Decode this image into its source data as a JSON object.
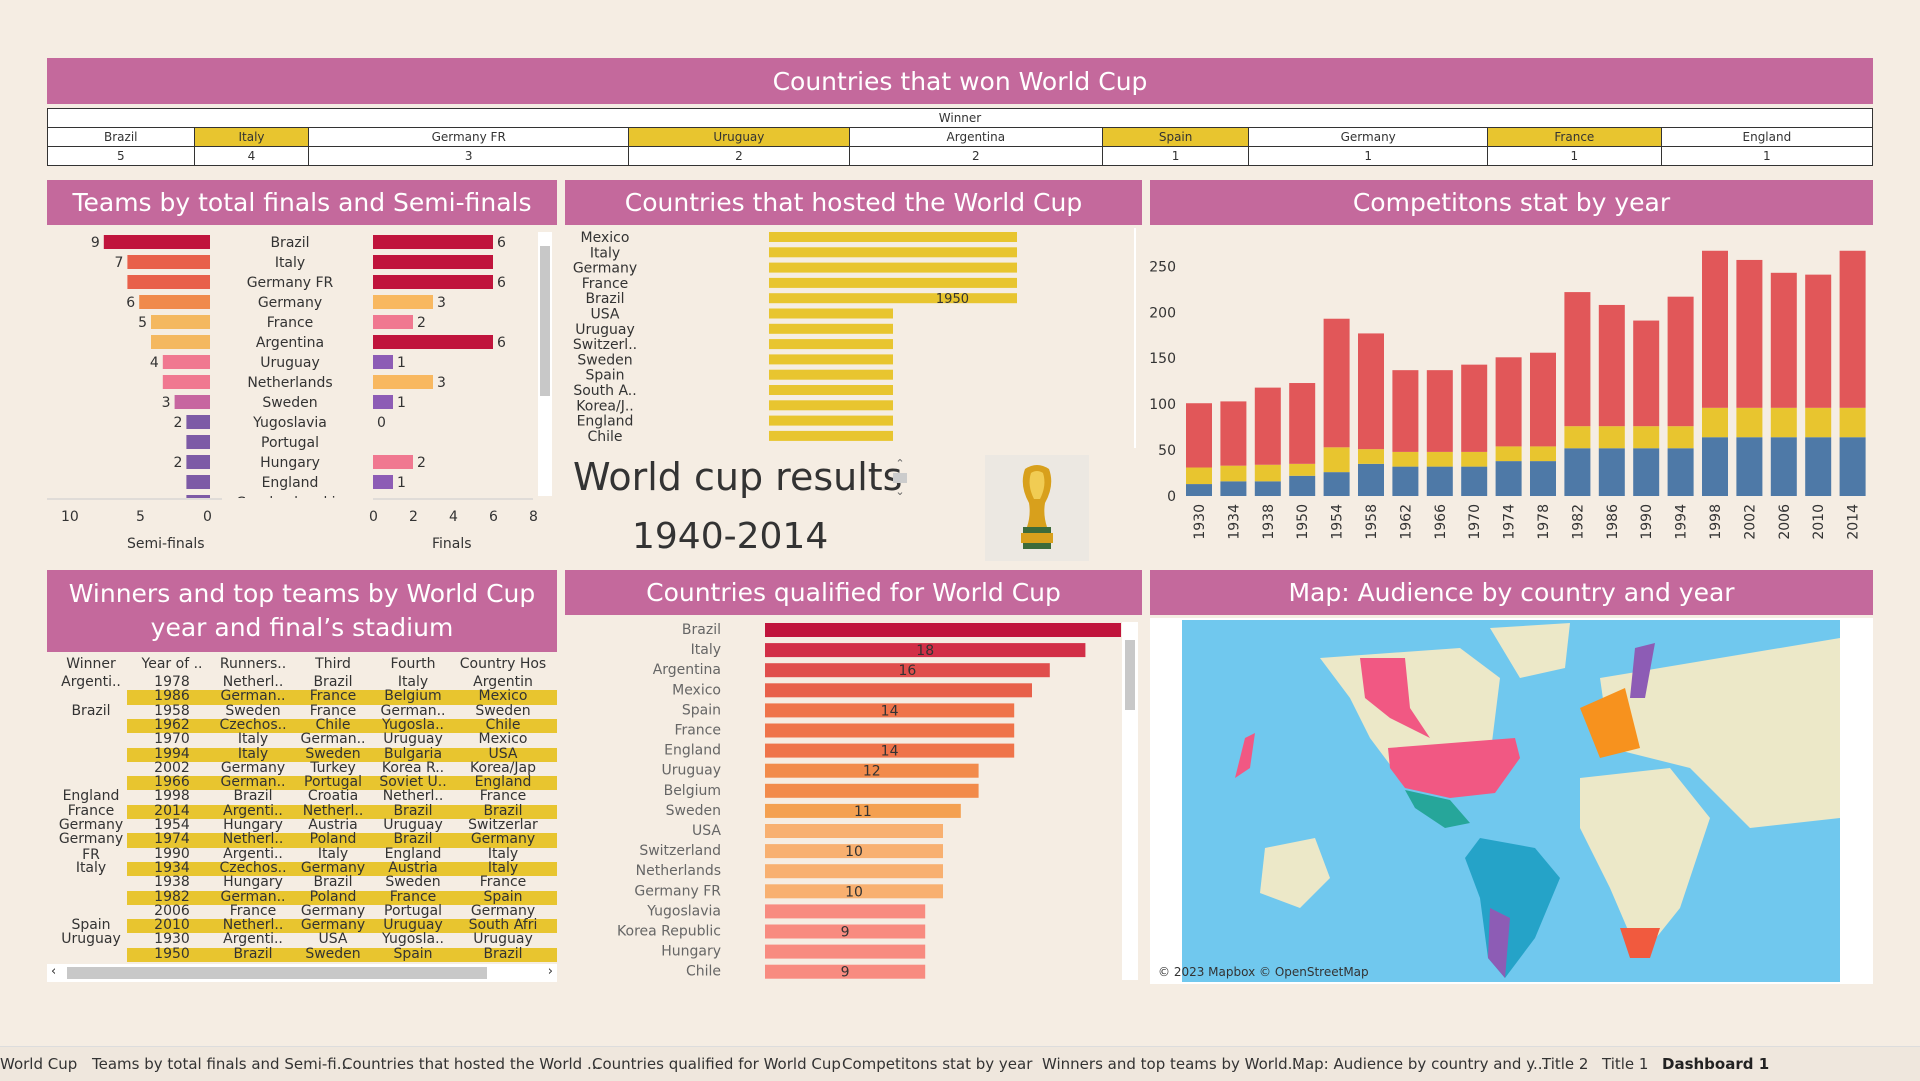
{
  "main_title": "Countries that won World Cup",
  "winners_table": {
    "header": "Winner",
    "countries": [
      "Brazil",
      "Italy",
      "Germany FR",
      "Uruguay",
      "Argentina",
      "Spain",
      "Germany",
      "France",
      "England"
    ],
    "counts": [
      "5",
      "4",
      "3",
      "2",
      "2",
      "1",
      "1",
      "1",
      "1"
    ],
    "highlight": [
      false,
      true,
      false,
      true,
      false,
      true,
      false,
      true,
      false
    ]
  },
  "panels": {
    "finals_title": "Teams by total finals and Semi-finals",
    "hosted_title": "Countries that hosted the World Cup",
    "stats_title": "Competitons stat by year",
    "winners_title": "Winners and top teams by World Cup year and final’s stadium",
    "qualified_title": "Countries qualified for World Cup",
    "map_title": "Map: Audience by country and year"
  },
  "results_text": {
    "line1": "World cup results",
    "line2": "1940-2014"
  },
  "map_credit": "© 2023 Mapbox © OpenStreetMap",
  "chart_data": [
    {
      "type": "bar",
      "name": "finals_and_semifinals",
      "categories": [
        "Brazil",
        "Italy",
        "Germany FR",
        "Germany",
        "France",
        "Argentina",
        "Uruguay",
        "Netherlands",
        "Sweden",
        "Yugoslavia",
        "Portugal",
        "Hungary",
        "England",
        "Czechoslovakia"
      ],
      "semi_finals": [
        9,
        7,
        7,
        6,
        5,
        5,
        4,
        4,
        3,
        2,
        2,
        2,
        2,
        2
      ],
      "semi_labels": [
        "9",
        "7",
        "",
        "6",
        "5",
        "",
        "4",
        "",
        "3",
        "2",
        "",
        "2",
        "",
        ""
      ],
      "finals": [
        6,
        6,
        6,
        3,
        2,
        6,
        1,
        3,
        1,
        0,
        null,
        2,
        1,
        null
      ],
      "finals_labels": [
        "6",
        "",
        "6",
        "3",
        "2",
        "6",
        "1",
        "3",
        "1",
        "0",
        "",
        "2",
        "1",
        ""
      ],
      "semi_axis": {
        "ticks": [
          "10",
          "5",
          "0"
        ],
        "label": "Semi-finals"
      },
      "finals_axis": {
        "ticks": [
          "0",
          "2",
          "4",
          "6",
          "8"
        ],
        "label": "Finals"
      }
    },
    {
      "type": "bar",
      "name": "hosted",
      "categories": [
        "Mexico",
        "Italy",
        "Germany",
        "France",
        "Brazil",
        "USA",
        "Uruguay",
        "Switzerl..",
        "Sweden",
        "Spain",
        "South A..",
        "Korea/J..",
        "England",
        "Chile"
      ],
      "values": [
        2,
        2,
        2,
        2,
        2,
        1,
        1,
        1,
        1,
        1,
        1,
        1,
        1,
        1
      ],
      "annotation": {
        "category": "Brazil",
        "text": "1950"
      }
    },
    {
      "type": "bar",
      "name": "competition_stats",
      "categories": [
        "1930",
        "1934",
        "1938",
        "1950",
        "1954",
        "1958",
        "1962",
        "1966",
        "1970",
        "1974",
        "1978",
        "1982",
        "1986",
        "1990",
        "1994",
        "1998",
        "2002",
        "2006",
        "2010",
        "2014"
      ],
      "stack_bottom": [
        13,
        16,
        16,
        22,
        26,
        35,
        32,
        32,
        32,
        38,
        38,
        52,
        52,
        52,
        52,
        64,
        64,
        64,
        64,
        64
      ],
      "stack_middle": [
        18,
        17,
        18,
        13,
        27,
        16,
        16,
        16,
        16,
        16,
        16,
        24,
        24,
        24,
        24,
        32,
        32,
        32,
        32,
        32
      ],
      "stack_top": [
        70,
        70,
        84,
        88,
        140,
        126,
        89,
        89,
        95,
        97,
        102,
        146,
        132,
        115,
        141,
        171,
        161,
        147,
        145,
        171
      ],
      "y_ticks": [
        "0",
        "50",
        "100",
        "150",
        "200",
        "250"
      ],
      "ylim": [
        0,
        270
      ],
      "colors": {
        "bottom": "#4e79a7",
        "middle": "#e8c52f",
        "top": "#e15759"
      }
    },
    {
      "type": "bar",
      "name": "qualified",
      "categories": [
        "Brazil",
        "Italy",
        "Argentina",
        "Mexico",
        "Spain",
        "France",
        "England",
        "Uruguay",
        "Belgium",
        "Sweden",
        "USA",
        "Switzerland",
        "Netherlands",
        "Germany FR",
        "Yugoslavia",
        "Korea Republic",
        "Hungary",
        "Chile"
      ],
      "values": [
        20,
        18,
        16,
        15,
        14,
        14,
        14,
        12,
        12,
        11,
        10,
        10,
        10,
        10,
        9,
        9,
        9,
        9
      ],
      "labels": [
        "",
        "18",
        "16",
        "",
        "14",
        "",
        "14",
        "12",
        "",
        "11",
        "",
        "10",
        "",
        "10",
        "",
        "9",
        "",
        "9"
      ],
      "xlim": [
        0,
        20
      ]
    }
  ],
  "winners_detail": {
    "headers": [
      "Winner",
      "Year of ..",
      "Runners..",
      "Third",
      "Fourth",
      "Country Hos"
    ],
    "groups": [
      {
        "winner": "Argenti..",
        "start": 0
      },
      {
        "winner": "Brazil",
        "start": 2
      },
      {
        "winner": "England",
        "start": 8
      },
      {
        "winner": "France",
        "start": 9
      },
      {
        "winner": "Germany",
        "start": 10
      },
      {
        "winner": "Germany",
        "winner2": "FR",
        "start": 11
      },
      {
        "winner": "Italy",
        "start": 13
      },
      {
        "winner": "Spain",
        "start": 17
      },
      {
        "winner": "Uruguay",
        "start": 18
      }
    ],
    "rows": [
      [
        "1978",
        "Netherl..",
        "Brazil",
        "Italy",
        "Argentin",
        false
      ],
      [
        "1986",
        "German..",
        "France",
        "Belgium",
        "Mexico",
        true
      ],
      [
        "1958",
        "Sweden",
        "France",
        "German..",
        "Sweden",
        false
      ],
      [
        "1962",
        "Czechos..",
        "Chile",
        "Yugosla..",
        "Chile",
        true
      ],
      [
        "1970",
        "Italy",
        "German..",
        "Uruguay",
        "Mexico",
        false
      ],
      [
        "1994",
        "Italy",
        "Sweden",
        "Bulgaria",
        "USA",
        true
      ],
      [
        "2002",
        "Germany",
        "Turkey",
        "Korea R..",
        "Korea/Jap",
        false
      ],
      [
        "1966",
        "German..",
        "Portugal",
        "Soviet U..",
        "England",
        true
      ],
      [
        "1998",
        "Brazil",
        "Croatia",
        "Netherl..",
        "France",
        false
      ],
      [
        "2014",
        "Argenti..",
        "Netherl..",
        "Brazil",
        "Brazil",
        true
      ],
      [
        "1954",
        "Hungary",
        "Austria",
        "Uruguay",
        "Switzerlar",
        false
      ],
      [
        "1974",
        "Netherl..",
        "Poland",
        "Brazil",
        "Germany",
        true
      ],
      [
        "1990",
        "Argenti..",
        "Italy",
        "England",
        "Italy",
        false
      ],
      [
        "1934",
        "Czechos..",
        "Germany",
        "Austria",
        "Italy",
        true
      ],
      [
        "1938",
        "Hungary",
        "Brazil",
        "Sweden",
        "France",
        false
      ],
      [
        "1982",
        "German..",
        "Poland",
        "France",
        "Spain",
        true
      ],
      [
        "2006",
        "France",
        "Germany",
        "Portugal",
        "Germany",
        false
      ],
      [
        "2010",
        "Netherl..",
        "Germany",
        "Uruguay",
        "South Afri",
        true
      ],
      [
        "1930",
        "Argenti..",
        "USA",
        "Yugosla..",
        "Uruguay",
        false
      ],
      [
        "1950",
        "Brazil",
        "Sweden",
        "Spain",
        "Brazil",
        true
      ]
    ]
  },
  "tabs": [
    "World Cup",
    "Teams by total finals and Semi-fi...",
    "Countries that hosted the World ...",
    "Countries qualified for World Cup",
    "Competitons stat by year",
    "Winners and top teams by World...",
    "Map: Audience by country and y...",
    "Title 2",
    "Title 1",
    "Dashboard 1"
  ]
}
